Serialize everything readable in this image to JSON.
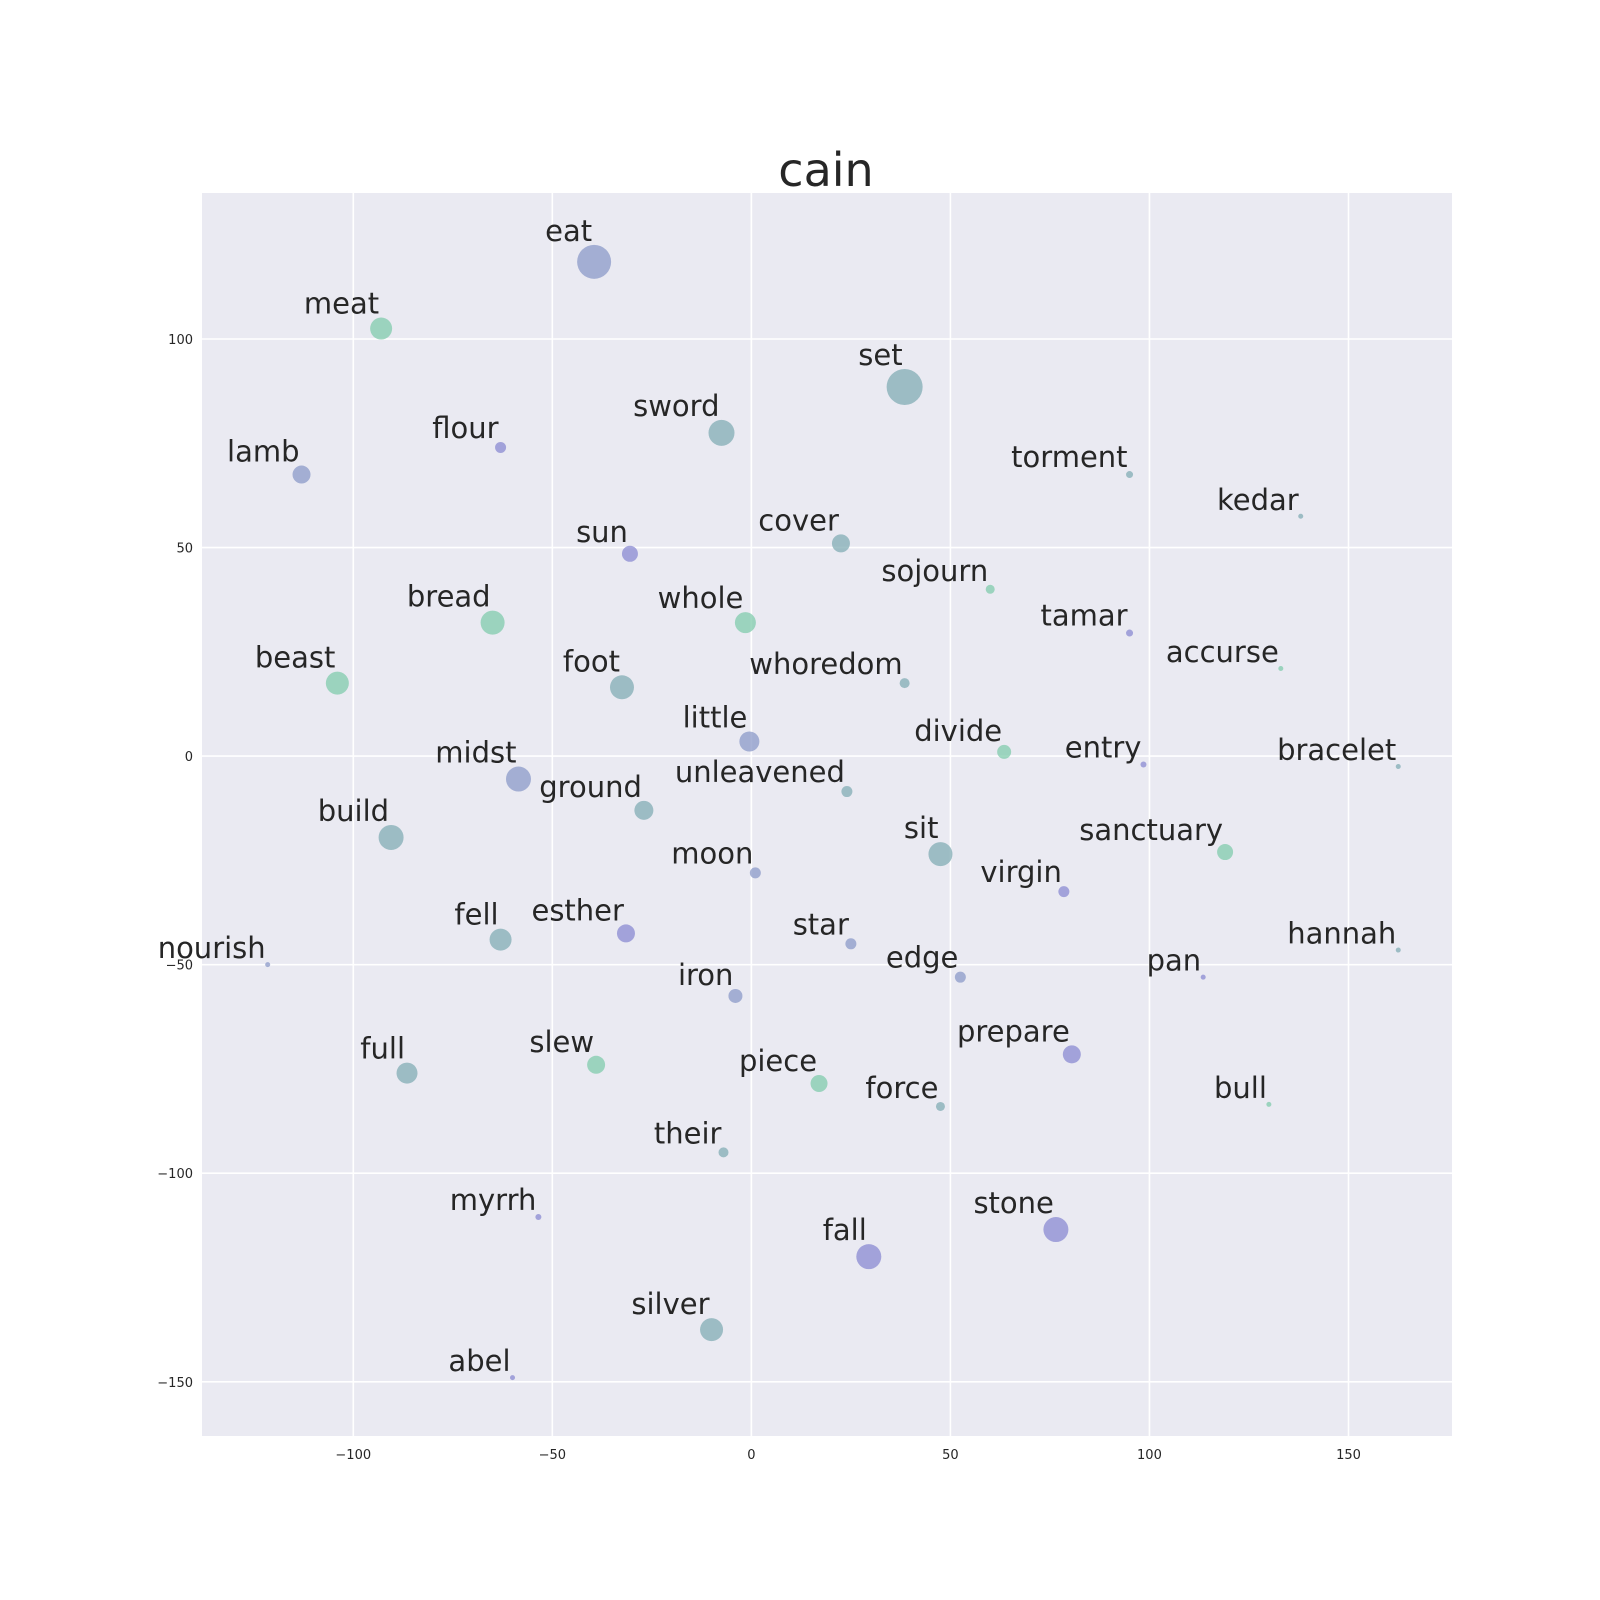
{
  "chart_data": {
    "type": "scatter",
    "title": "cain",
    "xlabel": "",
    "ylabel": "",
    "xlim": [
      -138,
      176
    ],
    "ylim": [
      -163,
      135
    ],
    "xticks": [
      -100,
      -50,
      0,
      50,
      100,
      150
    ],
    "yticks": [
      -150,
      -100,
      -50,
      0,
      50,
      100
    ],
    "xtick_labels": [
      "−100",
      "−50",
      "0",
      "50",
      "100",
      "150"
    ],
    "ytick_labels": [
      "−150",
      "−100",
      "−50",
      "0",
      "50",
      "100"
    ],
    "grid": true,
    "colors": {
      "background": "#eaeaf2",
      "grid": "#ffffff",
      "blue": "#8b99c8",
      "teal": "#82acb4",
      "green": "#80cbac",
      "purple": "#8a8ad2"
    },
    "points": [
      {
        "label": "eat",
        "x": -39.5,
        "y": 118.5,
        "size": 17,
        "color": "blue"
      },
      {
        "label": "meat",
        "x": -93,
        "y": 102.5,
        "size": 11,
        "color": "green"
      },
      {
        "label": "set",
        "x": 38.5,
        "y": 88.5,
        "size": 18,
        "color": "teal"
      },
      {
        "label": "sword",
        "x": -7.5,
        "y": 77.5,
        "size": 13,
        "color": "teal"
      },
      {
        "label": "flour",
        "x": -63,
        "y": 74,
        "size": 5.5,
        "color": "purple"
      },
      {
        "label": "lamb",
        "x": -113,
        "y": 67.5,
        "size": 9,
        "color": "blue"
      },
      {
        "label": "torment",
        "x": 95,
        "y": 67.5,
        "size": 3.5,
        "color": "teal"
      },
      {
        "label": "kedar",
        "x": 138,
        "y": 57.5,
        "size": 2.5,
        "color": "teal"
      },
      {
        "label": "sun",
        "x": -30.5,
        "y": 48.5,
        "size": 8,
        "color": "purple"
      },
      {
        "label": "cover",
        "x": 22.5,
        "y": 51,
        "size": 9,
        "color": "teal"
      },
      {
        "label": "sojourn",
        "x": 60,
        "y": 40,
        "size": 4.5,
        "color": "green"
      },
      {
        "label": "bread",
        "x": -65,
        "y": 32,
        "size": 12,
        "color": "green"
      },
      {
        "label": "whole",
        "x": -1.5,
        "y": 32,
        "size": 10.5,
        "color": "green"
      },
      {
        "label": "tamar",
        "x": 95,
        "y": 29.5,
        "size": 3.5,
        "color": "purple"
      },
      {
        "label": "accurse",
        "x": 133,
        "y": 21,
        "size": 2.5,
        "color": "green"
      },
      {
        "label": "beast",
        "x": -104,
        "y": 17.5,
        "size": 11.5,
        "color": "green"
      },
      {
        "label": "foot",
        "x": -32.5,
        "y": 16.5,
        "size": 12,
        "color": "teal"
      },
      {
        "label": "whoredom",
        "x": 38.5,
        "y": 17.5,
        "size": 5,
        "color": "teal"
      },
      {
        "label": "little",
        "x": -0.5,
        "y": 3.5,
        "size": 10,
        "color": "blue"
      },
      {
        "label": "divide",
        "x": 63.5,
        "y": 1,
        "size": 7,
        "color": "green"
      },
      {
        "label": "entry",
        "x": 98.5,
        "y": -2,
        "size": 3,
        "color": "purple"
      },
      {
        "label": "bracelet",
        "x": 162.5,
        "y": -2.5,
        "size": 2.5,
        "color": "teal"
      },
      {
        "label": "midst",
        "x": -58.5,
        "y": -5.5,
        "size": 12.5,
        "color": "blue"
      },
      {
        "label": "unleavened",
        "x": 24,
        "y": -8.5,
        "size": 5.5,
        "color": "teal"
      },
      {
        "label": "ground",
        "x": -27,
        "y": -13,
        "size": 9.5,
        "color": "teal"
      },
      {
        "label": "build",
        "x": -90.5,
        "y": -19.5,
        "size": 12.5,
        "color": "teal"
      },
      {
        "label": "sit",
        "x": 47.5,
        "y": -23.5,
        "size": 12,
        "color": "teal"
      },
      {
        "label": "sanctuary",
        "x": 119,
        "y": -23,
        "size": 8,
        "color": "green"
      },
      {
        "label": "moon",
        "x": 1,
        "y": -28,
        "size": 5.5,
        "color": "blue"
      },
      {
        "label": "virgin",
        "x": 78.5,
        "y": -32.5,
        "size": 5.5,
        "color": "purple"
      },
      {
        "label": "fell",
        "x": -63,
        "y": -44,
        "size": 11,
        "color": "teal"
      },
      {
        "label": "esther",
        "x": -31.5,
        "y": -42.5,
        "size": 9,
        "color": "purple"
      },
      {
        "label": "star",
        "x": 25,
        "y": -45,
        "size": 5.5,
        "color": "blue"
      },
      {
        "label": "nourish",
        "x": -121.5,
        "y": -50,
        "size": 2.5,
        "color": "blue"
      },
      {
        "label": "hannah",
        "x": 162.5,
        "y": -46.5,
        "size": 2.5,
        "color": "teal"
      },
      {
        "label": "edge",
        "x": 52.5,
        "y": -53,
        "size": 5.5,
        "color": "blue"
      },
      {
        "label": "pan",
        "x": 113.5,
        "y": -53,
        "size": 2.5,
        "color": "purple"
      },
      {
        "label": "iron",
        "x": -4,
        "y": -57.5,
        "size": 7,
        "color": "blue"
      },
      {
        "label": "full",
        "x": -86.5,
        "y": -76,
        "size": 10.5,
        "color": "teal"
      },
      {
        "label": "slew",
        "x": -39,
        "y": -74,
        "size": 9,
        "color": "green"
      },
      {
        "label": "prepare",
        "x": 80.5,
        "y": -71.5,
        "size": 9,
        "color": "purple"
      },
      {
        "label": "piece",
        "x": 17,
        "y": -78.5,
        "size": 8.5,
        "color": "green"
      },
      {
        "label": "force",
        "x": 47.5,
        "y": -84,
        "size": 4.5,
        "color": "teal"
      },
      {
        "label": "bull",
        "x": 130,
        "y": -83.5,
        "size": 2.5,
        "color": "green"
      },
      {
        "label": "their",
        "x": -7,
        "y": -95,
        "size": 5,
        "color": "teal"
      },
      {
        "label": "myrrh",
        "x": -53.5,
        "y": -110.5,
        "size": 3,
        "color": "purple"
      },
      {
        "label": "stone",
        "x": 76.5,
        "y": -113.5,
        "size": 12.5,
        "color": "purple"
      },
      {
        "label": "fall",
        "x": 29.5,
        "y": -120,
        "size": 12.5,
        "color": "purple"
      },
      {
        "label": "silver",
        "x": -10,
        "y": -137.5,
        "size": 11.5,
        "color": "teal"
      },
      {
        "label": "abel",
        "x": -60,
        "y": -149,
        "size": 2.5,
        "color": "purple"
      }
    ]
  }
}
